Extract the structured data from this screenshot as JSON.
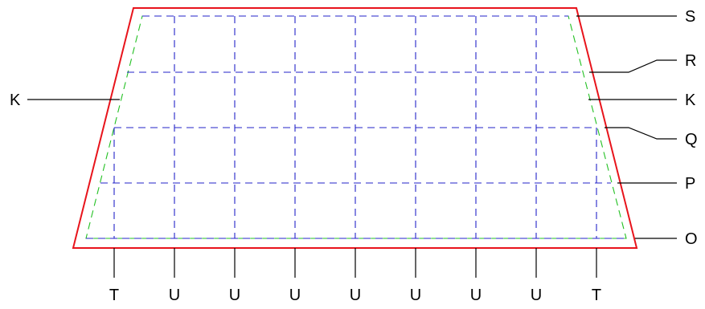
{
  "colors": {
    "outer_outline": "#e8141c",
    "inner_outline": "#22c022",
    "grid_lines": "#2323c8",
    "leader_lines": "#000000"
  },
  "right_labels": [
    "S",
    "R",
    "K",
    "Q",
    "P",
    "O"
  ],
  "left_labels": [
    "K"
  ],
  "bottom_labels": [
    "T",
    "U",
    "U",
    "U",
    "U",
    "U",
    "U",
    "U",
    "T"
  ]
}
